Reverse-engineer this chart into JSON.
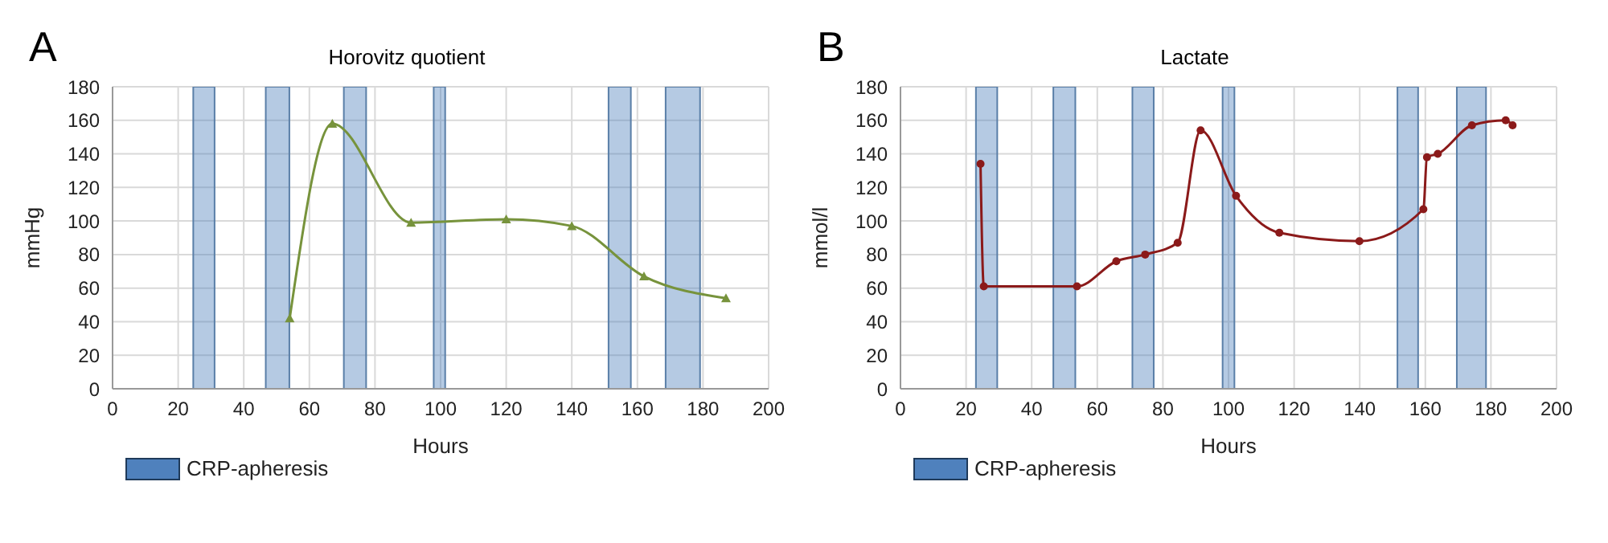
{
  "chart_data": [
    {
      "type": "line",
      "title": "Horovitz quotient",
      "xlabel": "Hours",
      "ylabel": "mmHg",
      "annotations": [
        "A"
      ],
      "series": [
        {
          "color": "#77933c",
          "x": [
            54,
            67,
            91,
            120,
            140,
            162,
            187
          ],
          "values": [
            42,
            158,
            99,
            101,
            97,
            67,
            54
          ]
        }
      ],
      "bands": [
        {
          "axis": "x",
          "from": 24.6,
          "to": 31.1,
          "label": "CRP-apheresis",
          "color": "#4f81bd"
        },
        {
          "axis": "x",
          "from": 46.7,
          "to": 53.9,
          "color": "#4f81bd"
        },
        {
          "axis": "x",
          "from": 70.5,
          "to": 77.3,
          "color": "#4f81bd"
        },
        {
          "axis": "x",
          "from": 97.9,
          "to": 101.4,
          "color": "#4f81bd"
        },
        {
          "axis": "x",
          "from": 151.2,
          "to": 158,
          "color": "#4f81bd"
        },
        {
          "axis": "x",
          "from": 168.6,
          "to": 179.1,
          "color": "#4f81bd"
        }
      ],
      "xlim": [
        0,
        200
      ],
      "xticks": [
        0,
        20,
        40,
        60,
        80,
        100,
        120,
        140,
        160,
        180,
        200
      ],
      "ylim": [
        0,
        180
      ],
      "yticks": [
        0,
        20,
        40,
        60,
        80,
        100,
        120,
        140,
        160,
        180
      ],
      "grid": true,
      "legend": "bottom left",
      "marker": "triangle",
      "line_style": "solid"
    },
    {
      "type": "line",
      "title": "Lactate",
      "xlabel": "Hours",
      "ylabel": "mmol/l",
      "annotations": [
        "B"
      ],
      "series": [
        {
          "color": "#8b1a1a",
          "x": [
            24.4,
            25.4,
            53.8,
            65.8,
            74.6,
            84.5,
            91.5,
            102.3,
            115.5,
            139.9,
            159.4,
            160.5,
            163.8,
            174.2,
            184.5,
            186.6
          ],
          "values": [
            134,
            61,
            61,
            76,
            80,
            87,
            154,
            115,
            93,
            88,
            107,
            138,
            140,
            157,
            160,
            157
          ]
        }
      ],
      "bands": [
        {
          "axis": "x",
          "from": 23.0,
          "to": 29.5,
          "label": "CRP-apheresis",
          "color": "#4f81bd"
        },
        {
          "axis": "x",
          "from": 46.6,
          "to": 53.3,
          "color": "#4f81bd"
        },
        {
          "axis": "x",
          "from": 70.7,
          "to": 77.2,
          "color": "#4f81bd"
        },
        {
          "axis": "x",
          "from": 98.2,
          "to": 101.8,
          "color": "#4f81bd"
        },
        {
          "axis": "x",
          "from": 151.5,
          "to": 157.8,
          "color": "#4f81bd"
        },
        {
          "axis": "x",
          "from": 169.6,
          "to": 178.5,
          "color": "#4f81bd"
        }
      ],
      "xlim": [
        0,
        200
      ],
      "xticks": [
        0,
        20,
        40,
        60,
        80,
        100,
        120,
        140,
        160,
        180,
        200
      ],
      "ylim": [
        0,
        180
      ],
      "yticks": [
        0,
        20,
        40,
        60,
        80,
        100,
        120,
        140,
        160,
        180
      ],
      "grid": true,
      "legend": "bottom left",
      "marker": "circle",
      "line_style": "solid"
    }
  ]
}
